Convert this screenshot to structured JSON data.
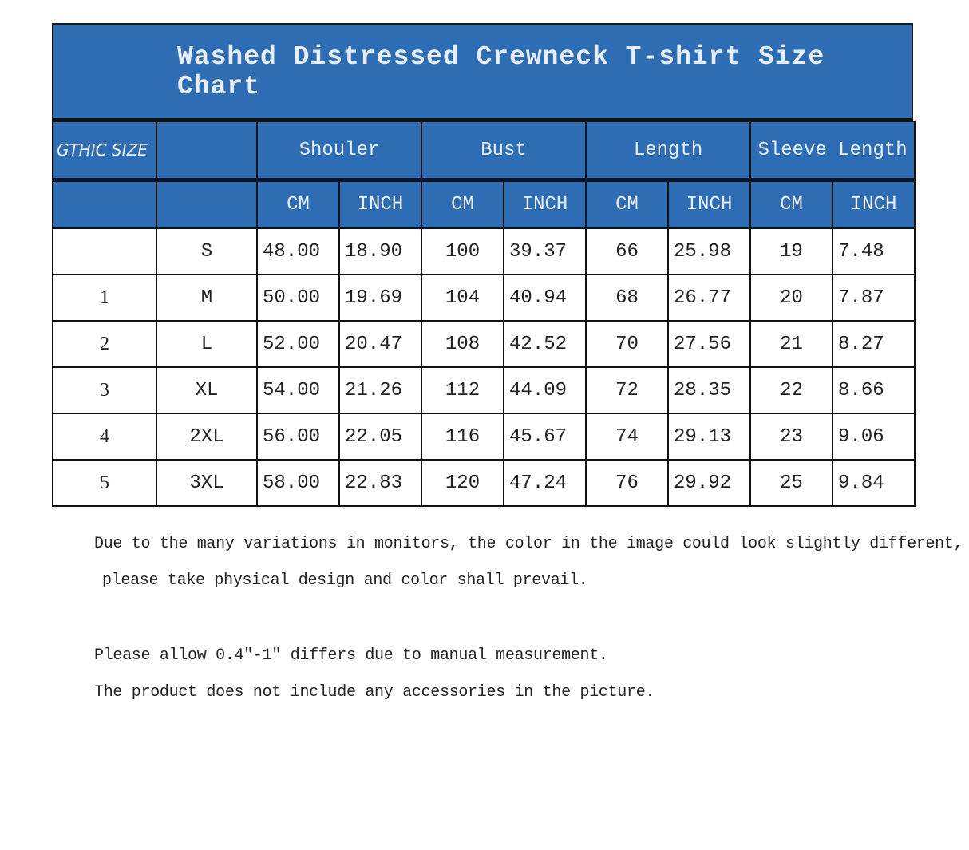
{
  "title": "Washed Distressed Crewneck T-shirt Size Chart",
  "header": {
    "corner": "GTHIC SIZE",
    "groups": [
      "Shouler",
      "Bust",
      "Length",
      "Sleeve Length"
    ],
    "units": [
      "CM",
      "INCH",
      "CM",
      "INCH",
      "CM",
      "INCH",
      "CM",
      "INCH"
    ]
  },
  "rows": [
    {
      "index": "",
      "size": "S",
      "values": [
        "48.00",
        "18.90",
        "100",
        "39.37",
        "66",
        "25.98",
        "19",
        "7.48"
      ]
    },
    {
      "index": "1",
      "size": "M",
      "values": [
        "50.00",
        "19.69",
        "104",
        "40.94",
        "68",
        "26.77",
        "20",
        "7.87"
      ]
    },
    {
      "index": "2",
      "size": "L",
      "values": [
        "52.00",
        "20.47",
        "108",
        "42.52",
        "70",
        "27.56",
        "21",
        "8.27"
      ]
    },
    {
      "index": "3",
      "size": "XL",
      "values": [
        "54.00",
        "21.26",
        "112",
        "44.09",
        "72",
        "28.35",
        "22",
        "8.66"
      ]
    },
    {
      "index": "4",
      "size": "2XL",
      "values": [
        "56.00",
        "22.05",
        "116",
        "45.67",
        "74",
        "29.13",
        "23",
        "9.06"
      ]
    },
    {
      "index": "5",
      "size": "3XL",
      "values": [
        "58.00",
        "22.83",
        "120",
        "47.24",
        "76",
        "29.92",
        "25",
        "9.84"
      ]
    }
  ],
  "notes": [
    "Due to the many variations in monitors, the color in the image could look slightly different,",
    " please take physical design and color shall prevail.",
    "Please allow 0.4\"-1\" differs due to manual measurement.",
    "The product does not include any accessories in the picture."
  ],
  "colors": {
    "header_blue": "#2e6db4"
  }
}
